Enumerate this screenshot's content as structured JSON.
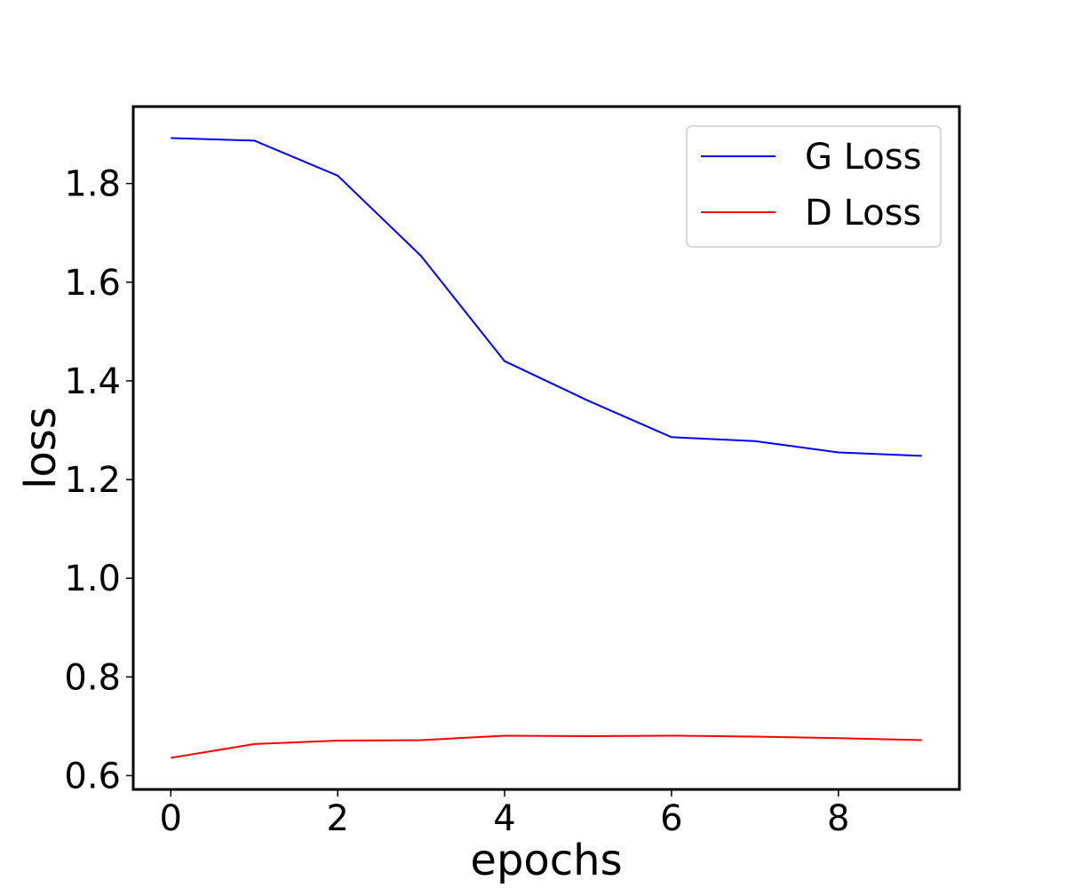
{
  "chart_data": {
    "type": "line",
    "title": "",
    "xlabel": "epochs",
    "ylabel": "loss",
    "xlim": [
      -0.45,
      9.45
    ],
    "ylim": [
      0.572,
      1.956
    ],
    "xticks": [
      0,
      2,
      4,
      6,
      8
    ],
    "yticks": [
      0.6,
      0.8,
      1.0,
      1.2,
      1.4,
      1.6,
      1.8
    ],
    "xtick_labels": [
      "0",
      "2",
      "4",
      "6",
      "8"
    ],
    "ytick_labels": [
      "0.6",
      "0.8",
      "1.0",
      "1.2",
      "1.4",
      "1.6",
      "1.8"
    ],
    "grid": false,
    "legend_position": "top-right",
    "x": [
      0,
      1,
      2,
      3,
      4,
      5,
      6,
      7,
      8,
      9
    ],
    "series": [
      {
        "name": "G Loss",
        "color": "#0000ff",
        "values": [
          1.892,
          1.887,
          1.816,
          1.653,
          1.44,
          1.36,
          1.286,
          1.278,
          1.255,
          1.248
        ]
      },
      {
        "name": "D Loss",
        "color": "#ff0000",
        "values": [
          0.636,
          0.664,
          0.671,
          0.672,
          0.681,
          0.68,
          0.681,
          0.679,
          0.676,
          0.672
        ]
      }
    ]
  }
}
